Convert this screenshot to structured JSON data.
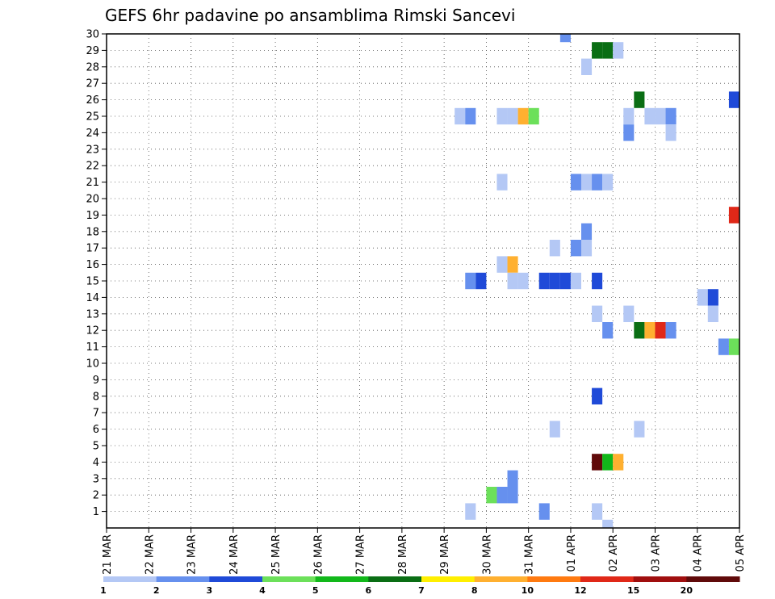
{
  "chart_data": {
    "type": "heatmap",
    "title": "GEFS 6hr padavine po ansamblima Rimski Sancevi",
    "xlabel": "",
    "ylabel": "",
    "x_tick_labels": [
      "21 MAR",
      "22 MAR",
      "23 MAR",
      "24 MAR",
      "25 MAR",
      "26 MAR",
      "27 MAR",
      "28 MAR",
      "29 MAR",
      "30 MAR",
      "31 MAR",
      "01 APR",
      "02 APR",
      "03 APR",
      "04 APR",
      "05 APR"
    ],
    "y_tick_labels": [
      "1",
      "2",
      "3",
      "4",
      "5",
      "6",
      "7",
      "8",
      "9",
      "10",
      "11",
      "12",
      "13",
      "14",
      "15",
      "16",
      "17",
      "18",
      "19",
      "20",
      "21",
      "22",
      "23",
      "24",
      "25",
      "26",
      "27",
      "28",
      "29",
      "30"
    ],
    "xlim_days": [
      0,
      15
    ],
    "ylim": [
      0,
      30
    ],
    "grid": true,
    "colorbar": {
      "levels": [
        "1",
        "2",
        "3",
        "4",
        "5",
        "6",
        "7",
        "8",
        "10",
        "12",
        "15",
        "20"
      ],
      "colors": [
        "#b4c8f5",
        "#6690ee",
        "#1f4ad8",
        "#6ce05a",
        "#12b81a",
        "#0a6e14",
        "#ffef00",
        "#ffb030",
        "#ff7a10",
        "#e02818",
        "#a00e0e",
        "#600a0a"
      ]
    },
    "cells": [
      {
        "member": 30,
        "day": 10.75,
        "bin": 1
      },
      {
        "member": 29,
        "day": 11.5,
        "bin": 5
      },
      {
        "member": 29,
        "day": 11.75,
        "bin": 5
      },
      {
        "member": 29,
        "day": 12.0,
        "bin": 0
      },
      {
        "member": 28,
        "day": 11.25,
        "bin": 0
      },
      {
        "member": 26,
        "day": 12.5,
        "bin": 5
      },
      {
        "member": 26,
        "day": 14.75,
        "bin": 2
      },
      {
        "member": 25,
        "day": 8.25,
        "bin": 0
      },
      {
        "member": 25,
        "day": 8.5,
        "bin": 1
      },
      {
        "member": 25,
        "day": 9.25,
        "bin": 0
      },
      {
        "member": 25,
        "day": 9.5,
        "bin": 0
      },
      {
        "member": 25,
        "day": 9.75,
        "bin": 7
      },
      {
        "member": 25,
        "day": 10.0,
        "bin": 3
      },
      {
        "member": 25,
        "day": 12.25,
        "bin": 0
      },
      {
        "member": 25,
        "day": 12.75,
        "bin": 0
      },
      {
        "member": 25,
        "day": 13.0,
        "bin": 0
      },
      {
        "member": 25,
        "day": 13.25,
        "bin": 1
      },
      {
        "member": 24,
        "day": 12.25,
        "bin": 1
      },
      {
        "member": 24,
        "day": 13.25,
        "bin": 0
      },
      {
        "member": 21,
        "day": 9.25,
        "bin": 0
      },
      {
        "member": 21,
        "day": 11.0,
        "bin": 1
      },
      {
        "member": 21,
        "day": 11.25,
        "bin": 0
      },
      {
        "member": 21,
        "day": 11.5,
        "bin": 1
      },
      {
        "member": 21,
        "day": 11.75,
        "bin": 0
      },
      {
        "member": 19,
        "day": 14.75,
        "bin": 9
      },
      {
        "member": 18,
        "day": 11.25,
        "bin": 1
      },
      {
        "member": 17,
        "day": 10.5,
        "bin": 0
      },
      {
        "member": 17,
        "day": 11.0,
        "bin": 1
      },
      {
        "member": 17,
        "day": 11.25,
        "bin": 0
      },
      {
        "member": 16,
        "day": 9.25,
        "bin": 0
      },
      {
        "member": 16,
        "day": 9.5,
        "bin": 7
      },
      {
        "member": 15,
        "day": 8.5,
        "bin": 1
      },
      {
        "member": 15,
        "day": 8.75,
        "bin": 2
      },
      {
        "member": 15,
        "day": 9.5,
        "bin": 0
      },
      {
        "member": 15,
        "day": 9.75,
        "bin": 0
      },
      {
        "member": 15,
        "day": 10.25,
        "bin": 2
      },
      {
        "member": 15,
        "day": 10.5,
        "bin": 2
      },
      {
        "member": 15,
        "day": 10.75,
        "bin": 2
      },
      {
        "member": 15,
        "day": 11.0,
        "bin": 0
      },
      {
        "member": 15,
        "day": 11.5,
        "bin": 2
      },
      {
        "member": 14,
        "day": 14.0,
        "bin": 0
      },
      {
        "member": 14,
        "day": 14.25,
        "bin": 2
      },
      {
        "member": 13,
        "day": 11.5,
        "bin": 0
      },
      {
        "member": 13,
        "day": 12.25,
        "bin": 0
      },
      {
        "member": 13,
        "day": 14.25,
        "bin": 0
      },
      {
        "member": 12,
        "day": 11.75,
        "bin": 1
      },
      {
        "member": 12,
        "day": 12.5,
        "bin": 5
      },
      {
        "member": 12,
        "day": 12.75,
        "bin": 7
      },
      {
        "member": 12,
        "day": 13.0,
        "bin": 9
      },
      {
        "member": 12,
        "day": 13.25,
        "bin": 1
      },
      {
        "member": 11,
        "day": 14.5,
        "bin": 1
      },
      {
        "member": 11,
        "day": 14.75,
        "bin": 3
      },
      {
        "member": 8,
        "day": 11.5,
        "bin": 2
      },
      {
        "member": 6,
        "day": 10.5,
        "bin": 0
      },
      {
        "member": 6,
        "day": 12.5,
        "bin": 0
      },
      {
        "member": 4,
        "day": 11.5,
        "bin": 11
      },
      {
        "member": 4,
        "day": 11.75,
        "bin": 4
      },
      {
        "member": 4,
        "day": 12.0,
        "bin": 7
      },
      {
        "member": 3,
        "day": 9.5,
        "bin": 1
      },
      {
        "member": 2,
        "day": 9.0,
        "bin": 3
      },
      {
        "member": 2,
        "day": 9.25,
        "bin": 1
      },
      {
        "member": 2,
        "day": 9.5,
        "bin": 1
      },
      {
        "member": 1,
        "day": 8.5,
        "bin": 0
      },
      {
        "member": 1,
        "day": 10.25,
        "bin": 1
      },
      {
        "member": 1,
        "day": 11.5,
        "bin": 0
      },
      {
        "member": 0,
        "day": 11.75,
        "bin": 0
      }
    ]
  }
}
